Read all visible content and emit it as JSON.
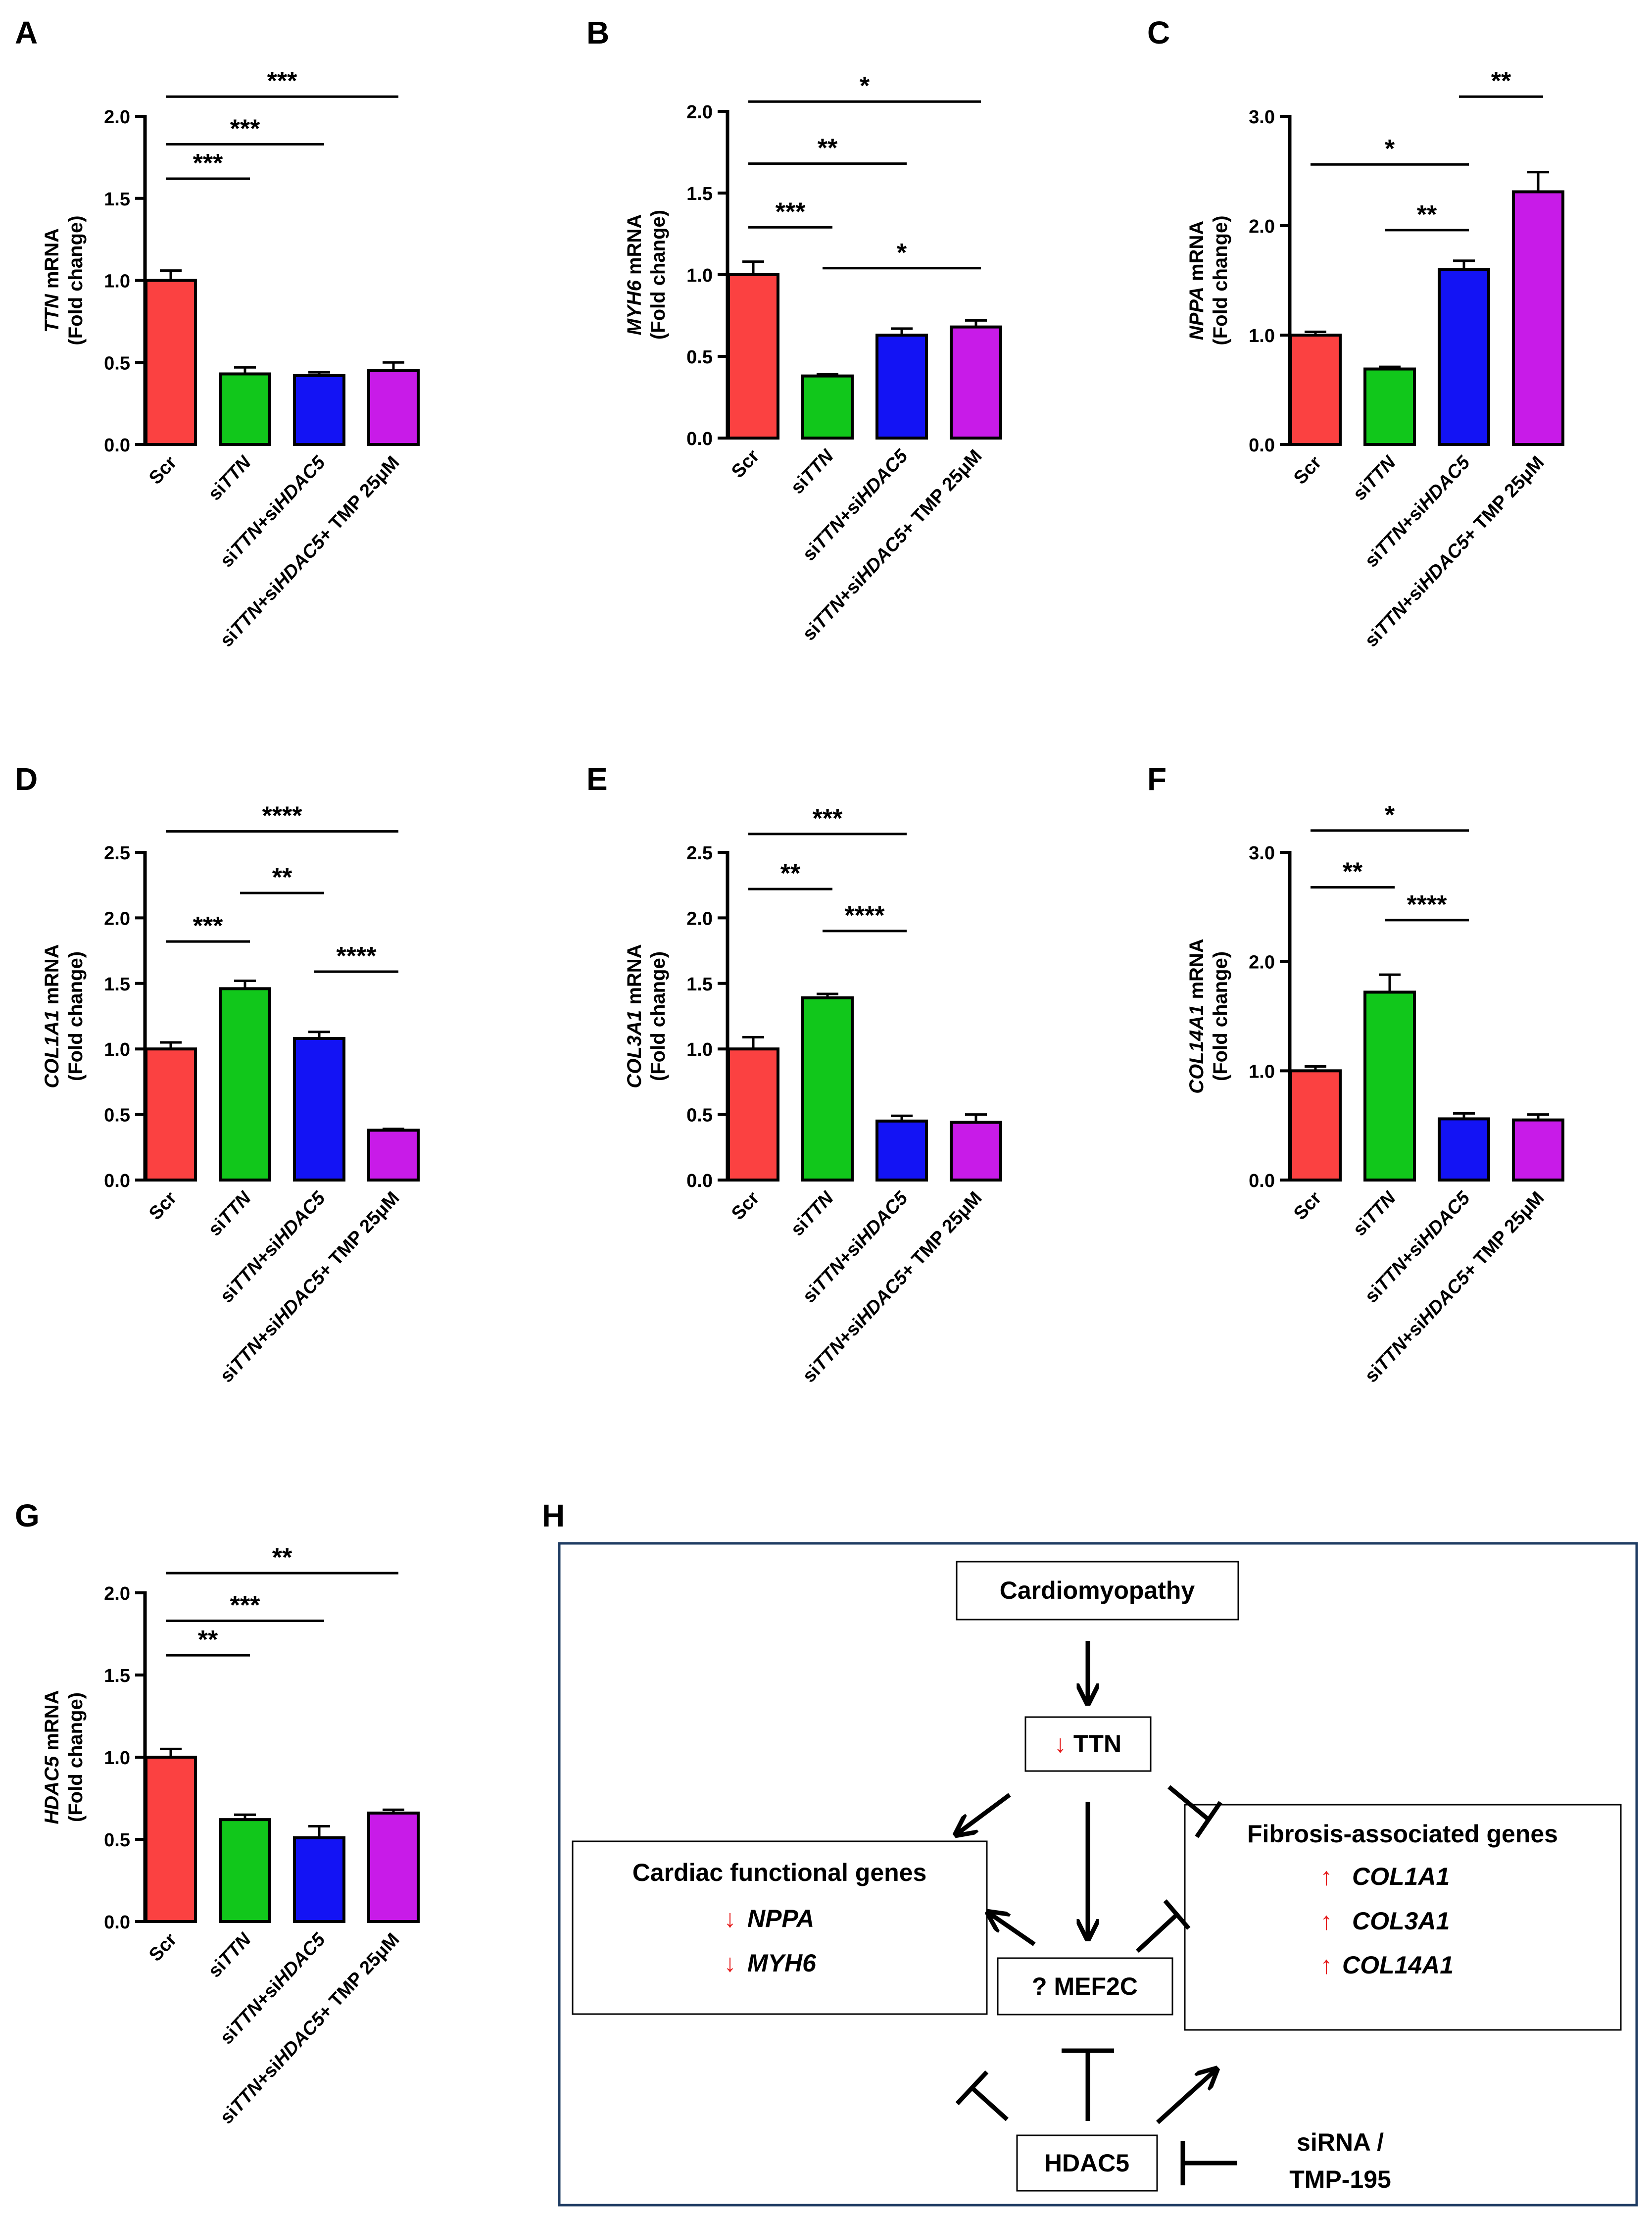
{
  "chart_data": [
    {
      "panel": "A",
      "type": "bar",
      "gene": "TTN",
      "ylabel_suffix": " mRNA",
      "ylabel_line2": "(Fold change)",
      "categories": [
        [
          {
            "t": "Scr",
            "i": false
          }
        ],
        [
          {
            "t": "si",
            "i": false
          },
          {
            "t": "TTN",
            "i": true
          }
        ],
        [
          {
            "t": "si",
            "i": false
          },
          {
            "t": "TTN",
            "i": true
          },
          {
            "t": "+si",
            "i": false
          },
          {
            "t": "HDAC5",
            "i": true
          }
        ],
        [
          {
            "t": "si",
            "i": false
          },
          {
            "t": "TTN",
            "i": true
          },
          {
            "t": "+si",
            "i": false
          },
          {
            "t": "HDAC5",
            "i": true
          },
          {
            "t": "+ TMP 25μM",
            "i": false
          }
        ]
      ],
      "values": [
        1.0,
        0.43,
        0.42,
        0.45
      ],
      "errors": [
        0.06,
        0.04,
        0.02,
        0.05
      ],
      "ylim": [
        0,
        2.0
      ],
      "yticks": [
        "0.0",
        "0.5",
        "1.0",
        "1.5",
        "2.0"
      ],
      "significance": [
        {
          "from": 0,
          "to": 1,
          "label": "***",
          "level": 1.62
        },
        {
          "from": 0,
          "to": 2,
          "label": "***",
          "level": 1.83
        },
        {
          "from": 0,
          "to": 3,
          "label": "***",
          "level": 2.12
        }
      ]
    },
    {
      "panel": "B",
      "type": "bar",
      "gene": "MYH6",
      "ylabel_suffix": " mRNA",
      "ylabel_line2": "(Fold change)",
      "categories": [
        [
          {
            "t": "Scr",
            "i": false
          }
        ],
        [
          {
            "t": "si",
            "i": false
          },
          {
            "t": "TTN",
            "i": true
          }
        ],
        [
          {
            "t": "si",
            "i": false
          },
          {
            "t": "TTN",
            "i": true
          },
          {
            "t": "+si",
            "i": false
          },
          {
            "t": "HDAC5",
            "i": true
          }
        ],
        [
          {
            "t": "si",
            "i": false
          },
          {
            "t": "TTN",
            "i": true
          },
          {
            "t": "+si",
            "i": false
          },
          {
            "t": "HDAC5",
            "i": true
          },
          {
            "t": "+ TMP 25μM",
            "i": false
          }
        ]
      ],
      "values": [
        1.0,
        0.38,
        0.63,
        0.68
      ],
      "errors": [
        0.08,
        0.01,
        0.04,
        0.04
      ],
      "ylim": [
        0,
        2.0
      ],
      "yticks": [
        "0.0",
        "0.5",
        "1.0",
        "1.5",
        "2.0"
      ],
      "significance": [
        {
          "from": 1,
          "to": 3,
          "label": "*",
          "level": 1.04
        },
        {
          "from": 0,
          "to": 1,
          "label": "***",
          "level": 1.29
        },
        {
          "from": 0,
          "to": 2,
          "label": "**",
          "level": 1.68
        },
        {
          "from": 0,
          "to": 3,
          "label": "*",
          "level": 2.06
        }
      ]
    },
    {
      "panel": "C",
      "type": "bar",
      "gene": "NPPA",
      "ylabel_suffix": " mRNA",
      "ylabel_line2": "(Fold change)",
      "categories": [
        [
          {
            "t": "Scr",
            "i": false
          }
        ],
        [
          {
            "t": "si",
            "i": false
          },
          {
            "t": "TTN",
            "i": true
          }
        ],
        [
          {
            "t": "si",
            "i": false
          },
          {
            "t": "TTN",
            "i": true
          },
          {
            "t": "+si",
            "i": false
          },
          {
            "t": "HDAC5",
            "i": true
          }
        ],
        [
          {
            "t": "si",
            "i": false
          },
          {
            "t": "TTN",
            "i": true
          },
          {
            "t": "+si",
            "i": false
          },
          {
            "t": "HDAC5",
            "i": true
          },
          {
            "t": "+ TMP 25μM",
            "i": false
          }
        ]
      ],
      "values": [
        1.0,
        0.69,
        1.6,
        2.31
      ],
      "errors": [
        0.03,
        0.02,
        0.08,
        0.18
      ],
      "ylim": [
        0,
        3.0
      ],
      "yticks": [
        "0.0",
        "1.0",
        "2.0",
        "3.0"
      ],
      "significance": [
        {
          "from": 1,
          "to": 2,
          "label": "**",
          "level": 1.96
        },
        {
          "from": 0,
          "to": 2,
          "label": "*",
          "level": 2.56
        },
        {
          "from": 2,
          "to": 3,
          "label": "**",
          "level": 3.18
        }
      ]
    },
    {
      "panel": "D",
      "type": "bar",
      "gene": "COL1A1",
      "ylabel_suffix": " mRNA",
      "ylabel_line2": "(Fold change)",
      "categories": [
        [
          {
            "t": "Scr",
            "i": false
          }
        ],
        [
          {
            "t": "si",
            "i": false
          },
          {
            "t": "TTN",
            "i": true
          }
        ],
        [
          {
            "t": "si",
            "i": false
          },
          {
            "t": "TTN",
            "i": true
          },
          {
            "t": "+si",
            "i": false
          },
          {
            "t": "HDAC5",
            "i": true
          }
        ],
        [
          {
            "t": "si",
            "i": false
          },
          {
            "t": "TTN",
            "i": true
          },
          {
            "t": "+si",
            "i": false
          },
          {
            "t": "HDAC5",
            "i": true
          },
          {
            "t": "+ TMP 25μM",
            "i": false
          }
        ]
      ],
      "values": [
        1.0,
        1.46,
        1.08,
        0.38
      ],
      "errors": [
        0.05,
        0.06,
        0.05,
        0.01
      ],
      "ylim": [
        0,
        2.5
      ],
      "yticks": [
        "0.0",
        "0.5",
        "1.0",
        "1.5",
        "2.0",
        "2.5"
      ],
      "significance": [
        {
          "from": 2,
          "to": 3,
          "label": "****",
          "level": 1.59
        },
        {
          "from": 0,
          "to": 1,
          "label": "***",
          "level": 1.82
        },
        {
          "from": 1,
          "to": 2,
          "label": "**",
          "level": 2.19
        },
        {
          "from": 0,
          "to": 3,
          "label": "****",
          "level": 2.66
        }
      ]
    },
    {
      "panel": "E",
      "type": "bar",
      "gene": "COL3A1",
      "ylabel_suffix": " mRNA",
      "ylabel_line2": "(Fold change)",
      "categories": [
        [
          {
            "t": "Scr",
            "i": false
          }
        ],
        [
          {
            "t": "si",
            "i": false
          },
          {
            "t": "TTN",
            "i": true
          }
        ],
        [
          {
            "t": "si",
            "i": false
          },
          {
            "t": "TTN",
            "i": true
          },
          {
            "t": "+si",
            "i": false
          },
          {
            "t": "HDAC5",
            "i": true
          }
        ],
        [
          {
            "t": "si",
            "i": false
          },
          {
            "t": "TTN",
            "i": true
          },
          {
            "t": "+si",
            "i": false
          },
          {
            "t": "HDAC5",
            "i": true
          },
          {
            "t": "+ TMP 25μM",
            "i": false
          }
        ]
      ],
      "values": [
        1.0,
        1.39,
        0.45,
        0.44
      ],
      "errors": [
        0.09,
        0.03,
        0.04,
        0.06
      ],
      "ylim": [
        0,
        2.5
      ],
      "yticks": [
        "0.0",
        "0.5",
        "1.0",
        "1.5",
        "2.0",
        "2.5"
      ],
      "significance": [
        {
          "from": 1,
          "to": 2,
          "label": "****",
          "level": 1.9
        },
        {
          "from": 0,
          "to": 1,
          "label": "**",
          "level": 2.22
        },
        {
          "from": 0,
          "to": 2,
          "label": "***",
          "level": 2.64
        }
      ]
    },
    {
      "panel": "F",
      "type": "bar",
      "gene": "COL14A1",
      "ylabel_suffix": " mRNA",
      "ylabel_line2": "(Fold change)",
      "categories": [
        [
          {
            "t": "Scr",
            "i": false
          }
        ],
        [
          {
            "t": "si",
            "i": false
          },
          {
            "t": "TTN",
            "i": true
          }
        ],
        [
          {
            "t": "si",
            "i": false
          },
          {
            "t": "TTN",
            "i": true
          },
          {
            "t": "+si",
            "i": false
          },
          {
            "t": "HDAC5",
            "i": true
          }
        ],
        [
          {
            "t": "si",
            "i": false
          },
          {
            "t": "TTN",
            "i": true
          },
          {
            "t": "+si",
            "i": false
          },
          {
            "t": "HDAC5",
            "i": true
          },
          {
            "t": "+ TMP 25μM",
            "i": false
          }
        ]
      ],
      "values": [
        1.0,
        1.72,
        0.56,
        0.55
      ],
      "errors": [
        0.04,
        0.16,
        0.05,
        0.05
      ],
      "ylim": [
        0,
        3.0
      ],
      "yticks": [
        "0.0",
        "1.0",
        "2.0",
        "3.0"
      ],
      "significance": [
        {
          "from": 1,
          "to": 2,
          "label": "****",
          "level": 2.38
        },
        {
          "from": 0,
          "to": 1,
          "label": "**",
          "level": 2.68
        },
        {
          "from": 0,
          "to": 2,
          "label": "*",
          "level": 3.2
        }
      ]
    },
    {
      "panel": "G",
      "type": "bar",
      "gene": "HDAC5",
      "ylabel_suffix": " mRNA",
      "ylabel_line2": "(Fold change)",
      "categories": [
        [
          {
            "t": "Scr",
            "i": false
          }
        ],
        [
          {
            "t": "si",
            "i": false
          },
          {
            "t": "TTN",
            "i": true
          }
        ],
        [
          {
            "t": "si",
            "i": false
          },
          {
            "t": "TTN",
            "i": true
          },
          {
            "t": "+si",
            "i": false
          },
          {
            "t": "HDAC5",
            "i": true
          }
        ],
        [
          {
            "t": "si",
            "i": false
          },
          {
            "t": "TTN",
            "i": true
          },
          {
            "t": "+si",
            "i": false
          },
          {
            "t": "HDAC5",
            "i": true
          },
          {
            "t": "+ TMP 25μM",
            "i": false
          }
        ]
      ],
      "values": [
        1.0,
        0.62,
        0.51,
        0.66
      ],
      "errors": [
        0.05,
        0.03,
        0.07,
        0.02
      ],
      "ylim": [
        0,
        2.0
      ],
      "yticks": [
        "0.0",
        "0.5",
        "1.0",
        "1.5",
        "2.0"
      ],
      "significance": [
        {
          "from": 0,
          "to": 1,
          "label": "**",
          "level": 1.62
        },
        {
          "from": 0,
          "to": 2,
          "label": "***",
          "level": 1.83
        },
        {
          "from": 0,
          "to": 3,
          "label": "**",
          "level": 2.12
        }
      ]
    }
  ],
  "colors": {
    "scr": "#fb4141",
    "sittn": "#11c71b",
    "sittn_sihdac5": "#1313f4",
    "tmp": "#c81be8",
    "diagram_border": "#1f3c63",
    "arrow_red": "#e51b1b"
  },
  "diagram": {
    "panel": "H",
    "cardiomyopathy": "Cardiomyopathy",
    "ttn_arrow": "↓",
    "ttn": "TTN",
    "mef2c": "? MEF2C",
    "hdac5": "HDAC5",
    "cardiac_title": "Cardiac functional genes",
    "cardiac_genes": [
      {
        "arrow": "↓",
        "name": "NPPA"
      },
      {
        "arrow": "↓",
        "name": "MYH6"
      }
    ],
    "fibrosis_title": "Fibrosis-associated genes",
    "fibrosis_genes": [
      {
        "arrow": "↑",
        "name": "COL1A1"
      },
      {
        "arrow": "↑",
        "name": "COL3A1"
      },
      {
        "arrow": "↑",
        "name": "COL14A1"
      }
    ],
    "sirna_line1": "siRNA /",
    "sirna_line2": "TMP-195"
  }
}
